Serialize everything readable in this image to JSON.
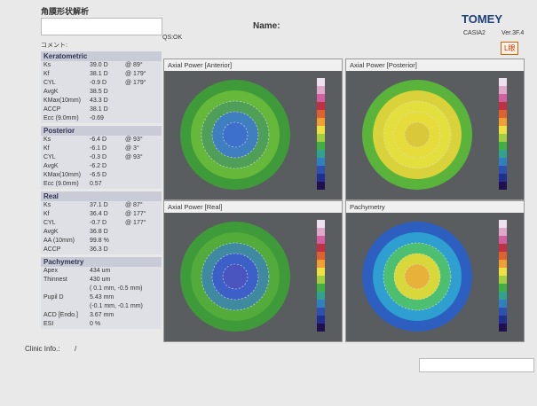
{
  "header": {
    "title": "角膜形状解析",
    "name_label": "Name:",
    "qs": "QS:OK",
    "comment": "コメント:",
    "brand": "TOMEY",
    "model": "CASIA2",
    "version": "Ver.3F.4",
    "eye": "L眼"
  },
  "sections": [
    {
      "title": "Keratometric",
      "rows": [
        [
          "Ks",
          "39.0 D",
          "@ 89°"
        ],
        [
          "Kf",
          "38.1 D",
          "@ 179°"
        ],
        [
          "CYL",
          "-0.9 D",
          "@ 179°"
        ],
        [
          "AvgK",
          "38.5 D"
        ],
        [
          "KMax(10mm)",
          "43.3 D"
        ],
        [
          "ACCP",
          "38.1 D"
        ],
        [
          "Ecc (9.0mm)",
          "-0.69"
        ]
      ]
    },
    {
      "title": "Posterior",
      "rows": [
        [
          "Ks",
          "-6.4 D",
          "@ 93°"
        ],
        [
          "Kf",
          "-6.1 D",
          "@ 3°"
        ],
        [
          "CYL",
          "-0.3 D",
          "@ 93°"
        ],
        [
          "AvgK",
          "-6.2 D"
        ],
        [
          "KMax(10mm)",
          "-6.5 D"
        ],
        [
          "Ecc (9.0mm)",
          "0.57"
        ]
      ]
    },
    {
      "title": "Real",
      "rows": [
        [
          "Ks",
          "37.1 D",
          "@ 87°"
        ],
        [
          "Kf",
          "36.4 D",
          "@ 177°"
        ],
        [
          "CYL",
          "-0.7 D",
          "@ 177°"
        ],
        [
          "AvgK",
          "36.8 D"
        ],
        [
          "AA (10mm)",
          "99.8 %"
        ],
        [
          "ACCP",
          "36.3 D"
        ]
      ]
    },
    {
      "title": "Pachymetry",
      "rows": [
        [
          "Apex",
          "434 um"
        ],
        [
          "Thinnest",
          "430 um",
          "( 0.1 mm, -0.5 mm)"
        ],
        [
          "Pupil D",
          "5.43 mm",
          "(-0.1 mm, -0.1 mm)"
        ],
        [
          "ACD [Endo.]",
          "3.67 mm"
        ],
        [
          "ESI",
          "0 %"
        ]
      ]
    }
  ],
  "maps": [
    {
      "title": "Axial Power [Anterior]"
    },
    {
      "title": "Axial Power [Posterior]"
    },
    {
      "title": "Axial Power [Real]"
    },
    {
      "title": "Pachymetry"
    }
  ],
  "footer": {
    "clinic_label": "Clinic Info.:",
    "clinic_value": "/"
  }
}
